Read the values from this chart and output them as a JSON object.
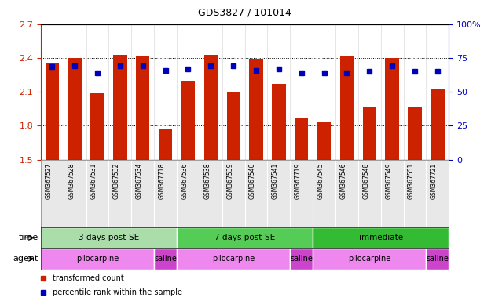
{
  "title": "GDS3827 / 101014",
  "samples": [
    "GSM367527",
    "GSM367528",
    "GSM367531",
    "GSM367532",
    "GSM367534",
    "GSM367718",
    "GSM367536",
    "GSM367538",
    "GSM367539",
    "GSM367540",
    "GSM367541",
    "GSM367719",
    "GSM367545",
    "GSM367546",
    "GSM367548",
    "GSM367549",
    "GSM367551",
    "GSM367721"
  ],
  "bar_values": [
    2.36,
    2.4,
    2.09,
    2.43,
    2.41,
    1.77,
    2.2,
    2.43,
    2.1,
    2.39,
    2.17,
    1.87,
    1.83,
    2.42,
    1.97,
    2.4,
    1.97,
    2.13
  ],
  "dot_left_values": [
    2.32,
    2.33,
    2.27,
    2.33,
    2.33,
    2.29,
    2.3,
    2.33,
    2.33,
    2.29,
    2.3,
    2.27,
    2.27,
    2.27,
    2.28,
    2.33,
    2.28,
    2.28
  ],
  "ylim_left": [
    1.5,
    2.7
  ],
  "ylim_right": [
    0,
    100
  ],
  "yticks_left": [
    1.5,
    1.8,
    2.1,
    2.4,
    2.7
  ],
  "yticks_right": [
    0,
    25,
    50,
    75,
    100
  ],
  "bar_color": "#cc2200",
  "dot_color": "#0000bb",
  "bar_bottom": 1.5,
  "groups": [
    {
      "label": "3 days post-SE",
      "start": 0,
      "end": 6,
      "color": "#aaddaa"
    },
    {
      "label": "7 days post-SE",
      "start": 6,
      "end": 12,
      "color": "#55cc55"
    },
    {
      "label": "immediate",
      "start": 12,
      "end": 18,
      "color": "#33bb33"
    }
  ],
  "agents": [
    {
      "label": "pilocarpine",
      "start": 0,
      "end": 5,
      "color": "#ee88ee"
    },
    {
      "label": "saline",
      "start": 5,
      "end": 6,
      "color": "#cc44cc"
    },
    {
      "label": "pilocarpine",
      "start": 6,
      "end": 11,
      "color": "#ee88ee"
    },
    {
      "label": "saline",
      "start": 11,
      "end": 12,
      "color": "#cc44cc"
    },
    {
      "label": "pilocarpine",
      "start": 12,
      "end": 17,
      "color": "#ee88ee"
    },
    {
      "label": "saline",
      "start": 17,
      "end": 18,
      "color": "#cc44cc"
    }
  ],
  "legend_items": [
    {
      "label": "transformed count",
      "color": "#cc2200"
    },
    {
      "label": "percentile rank within the sample",
      "color": "#0000bb"
    }
  ],
  "bg_color": "#ffffff",
  "tick_label_color_left": "#cc2200",
  "tick_label_color_right": "#0000bb"
}
